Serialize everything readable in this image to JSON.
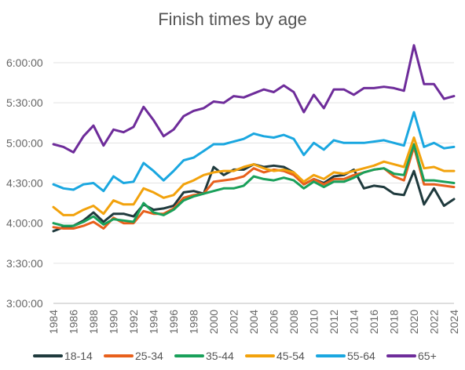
{
  "chart_data": {
    "type": "line",
    "title": "Finish times by age",
    "xlabel": "",
    "ylabel": "",
    "ylim": [
      "3:00:00",
      "6:00:00"
    ],
    "y_unit": "h:mm:ss",
    "x": [
      1984,
      1985,
      1986,
      1987,
      1988,
      1989,
      1990,
      1991,
      1992,
      1993,
      1994,
      1995,
      1996,
      1997,
      1998,
      1999,
      2000,
      2001,
      2002,
      2003,
      2004,
      2005,
      2006,
      2007,
      2008,
      2009,
      2010,
      2011,
      2012,
      2013,
      2014,
      2015,
      2016,
      2017,
      2018,
      2019,
      2020,
      2021,
      2022,
      2023,
      2024
    ],
    "x_tick_labels": [
      "1984",
      "1986",
      "1988",
      "1990",
      "1992",
      "1994",
      "1996",
      "1998",
      "2000",
      "2002",
      "2004",
      "2006",
      "2008",
      "2010",
      "2012",
      "2014",
      "2016",
      "2018",
      "2020",
      "2022",
      "2024"
    ],
    "y_tick_labels": [
      "3:00:00",
      "3:30:00",
      "4:00:00",
      "4:30:00",
      "5:00:00",
      "5:30:00",
      "6:00:00"
    ],
    "grid": "horizontal",
    "legend_position": "bottom",
    "series": [
      {
        "name": "18-14",
        "color": "#1f3a3d",
        "values": [
          "3:54:00",
          "3:57:00",
          "3:58:00",
          "4:02:00",
          "4:08:00",
          "4:01:00",
          "4:07:00",
          "4:07:00",
          "4:05:00",
          "4:14:00",
          "4:10:00",
          "4:11:00",
          "4:13:00",
          "4:23:00",
          "4:24:00",
          "4:22:00",
          "4:42:00",
          "4:36:00",
          "4:40:00",
          "4:40:00",
          "4:44:00",
          "4:42:00",
          "4:43:00",
          "4:42:00",
          "4:38:00",
          "4:29:00",
          "4:33:00",
          "4:30:00",
          "4:35:00",
          "4:36:00",
          "4:40:00",
          "4:26:00",
          "4:28:00",
          "4:27:00",
          "4:22:00",
          "4:21:00",
          "4:39:00",
          "4:14:00",
          "4:26:00",
          "4:13:00",
          "4:18:00"
        ]
      },
      {
        "name": "25-34",
        "color": "#e8601c",
        "values": [
          "3:57:00",
          "3:56:00",
          "3:56:00",
          "3:58:00",
          "4:01:00",
          "3:56:00",
          "4:04:00",
          "4:00:00",
          "4:00:00",
          "4:09:00",
          "4:07:00",
          "4:07:00",
          "4:11:00",
          "4:19:00",
          "4:21:00",
          "4:22:00",
          "4:31:00",
          "4:32:00",
          "4:33:00",
          "4:35:00",
          "4:41:00",
          "4:38:00",
          "4:40:00",
          "4:39:00",
          "4:36:00",
          "4:29:00",
          "4:33:00",
          "4:29:00",
          "4:33:00",
          "4:33:00",
          "4:36:00",
          "4:38:00",
          "4:40:00",
          "4:41:00",
          "4:35:00",
          "4:32:00",
          "4:57:00",
          "4:29:00",
          "4:29:00",
          "4:28:00",
          "4:27:00"
        ]
      },
      {
        "name": "35-44",
        "color": "#19a05a",
        "values": [
          "4:00:00",
          "3:58:00",
          "3:58:00",
          "4:01:00",
          "4:05:00",
          "3:59:00",
          "4:03:00",
          "4:02:00",
          "4:01:00",
          "4:15:00",
          "4:08:00",
          "4:06:00",
          "4:10:00",
          "4:17:00",
          "4:20:00",
          "4:22:00",
          "4:24:00",
          "4:26:00",
          "4:26:00",
          "4:28:00",
          "4:35:00",
          "4:33:00",
          "4:32:00",
          "4:34:00",
          "4:32:00",
          "4:26:00",
          "4:31:00",
          "4:27:00",
          "4:31:00",
          "4:31:00",
          "4:34:00",
          "4:38:00",
          "4:40:00",
          "4:41:00",
          "4:37:00",
          "4:36:00",
          "4:59:00",
          "4:32:00",
          "4:32:00",
          "4:31:00",
          "4:30:00"
        ]
      },
      {
        "name": "45-54",
        "color": "#f2a20c",
        "values": [
          "4:12:00",
          "4:06:00",
          "4:06:00",
          "4:10:00",
          "4:13:00",
          "4:07:00",
          "4:17:00",
          "4:14:00",
          "4:14:00",
          "4:26:00",
          "4:23:00",
          "4:19:00",
          "4:21:00",
          "4:29:00",
          "4:32:00",
          "4:36:00",
          "4:38:00",
          "4:39:00",
          "4:39:00",
          "4:42:00",
          "4:44:00",
          "4:41:00",
          "4:39:00",
          "4:40:00",
          "4:38:00",
          "4:31:00",
          "4:36:00",
          "4:33:00",
          "4:38:00",
          "4:37:00",
          "4:39:00",
          "4:41:00",
          "4:43:00",
          "4:46:00",
          "4:44:00",
          "4:42:00",
          "5:04:00",
          "4:41:00",
          "4:42:00",
          "4:39:00",
          "4:39:00"
        ]
      },
      {
        "name": "55-64",
        "color": "#1aa7e0",
        "values": [
          "4:29:00",
          "4:26:00",
          "4:25:00",
          "4:29:00",
          "4:30:00",
          "4:24:00",
          "4:35:00",
          "4:30:00",
          "4:31:00",
          "4:45:00",
          "4:39:00",
          "4:32:00",
          "4:39:00",
          "4:47:00",
          "4:49:00",
          "4:54:00",
          "4:59:00",
          "4:59:00",
          "5:01:00",
          "5:03:00",
          "5:07:00",
          "5:05:00",
          "5:04:00",
          "5:06:00",
          "5:03:00",
          "4:51:00",
          "5:00:00",
          "4:55:00",
          "5:02:00",
          "5:00:00",
          "5:00:00",
          "5:00:00",
          "5:01:00",
          "5:02:00",
          "5:00:00",
          "4:58:00",
          "5:23:00",
          "4:57:00",
          "5:00:00",
          "4:56:00",
          "4:57:00"
        ]
      },
      {
        "name": "65+",
        "color": "#6e2c9a",
        "values": [
          "4:59:00",
          "4:57:00",
          "4:53:00",
          "5:05:00",
          "5:13:00",
          "4:58:00",
          "5:10:00",
          "5:08:00",
          "5:12:00",
          "5:27:00",
          "5:17:00",
          "5:05:00",
          "5:10:00",
          "5:20:00",
          "5:24:00",
          "5:26:00",
          "5:31:00",
          "5:30:00",
          "5:35:00",
          "5:34:00",
          "5:37:00",
          "5:40:00",
          "5:38:00",
          "5:43:00",
          "5:38:00",
          "5:23:00",
          "5:36:00",
          "5:26:00",
          "5:40:00",
          "5:40:00",
          "5:36:00",
          "5:41:00",
          "5:41:00",
          "5:42:00",
          "5:41:00",
          "5:39:00",
          "6:13:00",
          "5:44:00",
          "5:44:00",
          "5:33:00",
          "5:35:00"
        ]
      }
    ]
  }
}
